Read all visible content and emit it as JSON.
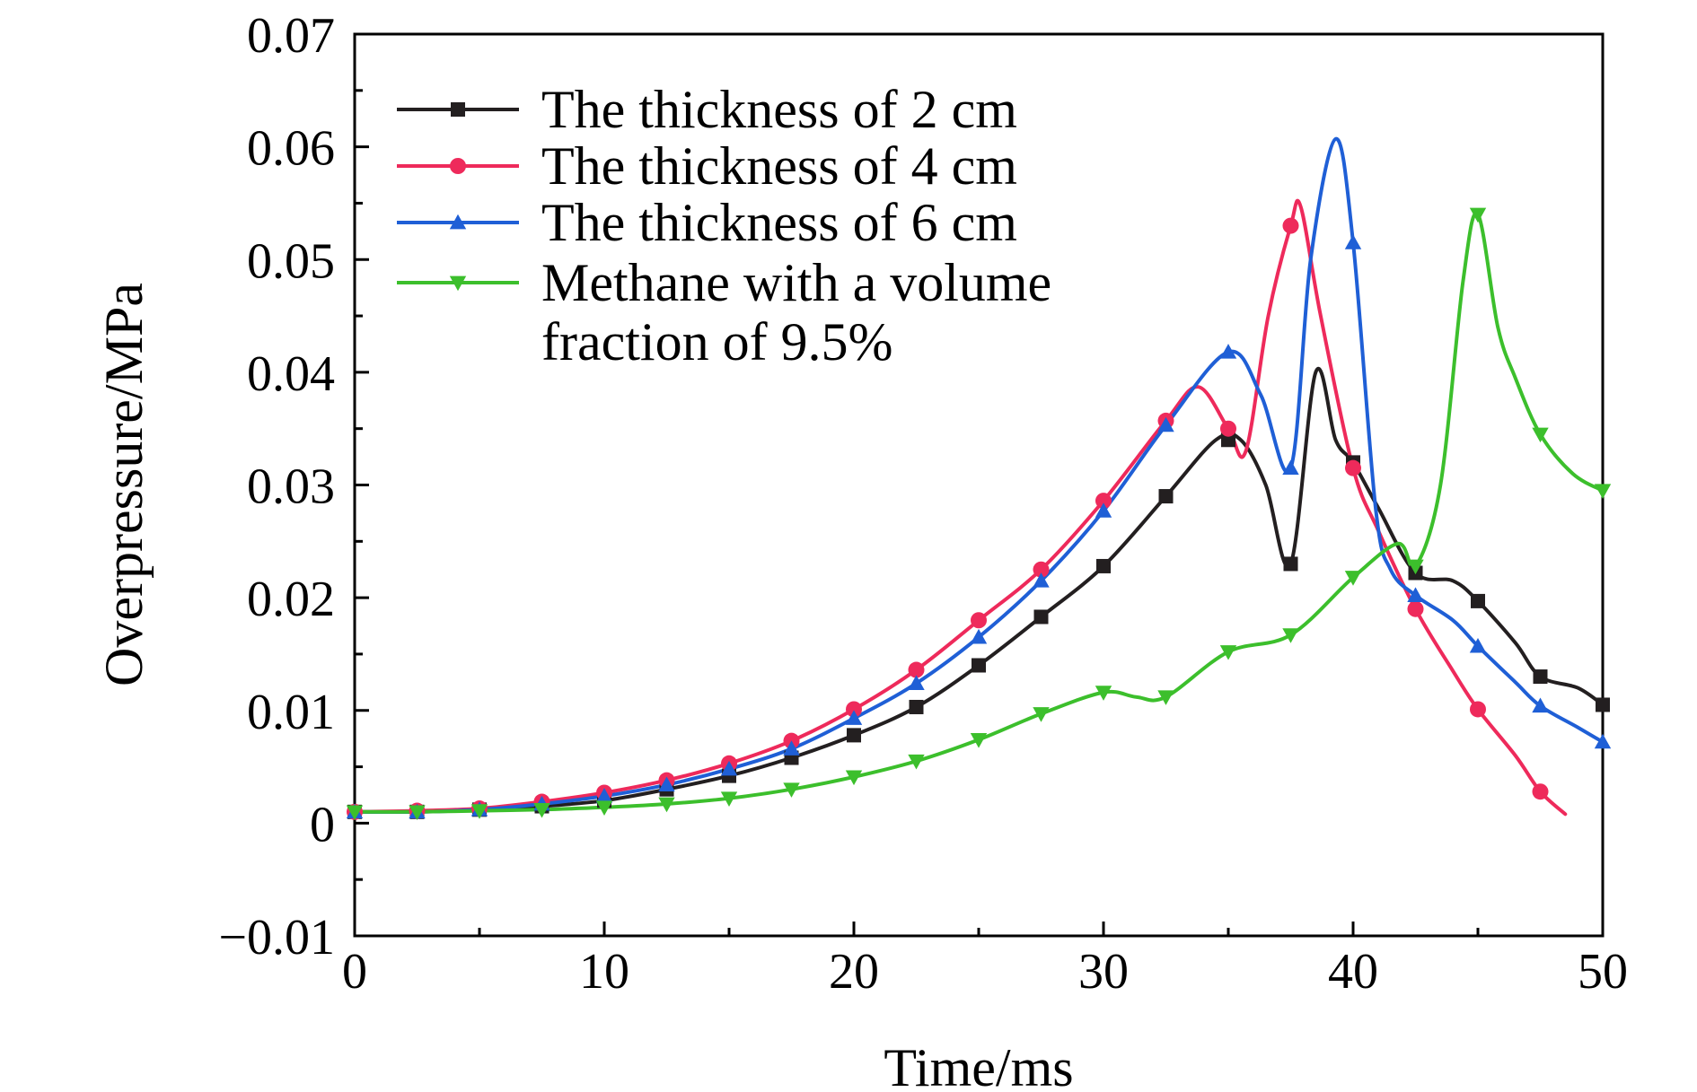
{
  "chart_data": {
    "type": "line",
    "xlabel": "Time/ms",
    "ylabel": "Overpressure/MPa",
    "xlim": [
      0,
      50
    ],
    "ylim": [
      -0.01,
      0.07
    ],
    "x_ticks": [
      "0",
      "10",
      "20",
      "30",
      "40",
      "50"
    ],
    "y_ticks": [
      "−0.01",
      "0",
      "0.01",
      "0.02",
      "0.03",
      "0.04",
      "0.05",
      "0.06",
      "0.07"
    ],
    "grid": false,
    "legend_position": "top-left",
    "series": [
      {
        "name": "The thickness of 2 cm",
        "color": "#231f20",
        "marker": "square",
        "markers": [
          [
            0,
            0.001
          ],
          [
            2.5,
            0.001
          ],
          [
            5,
            0.0012
          ],
          [
            7.5,
            0.0015
          ],
          [
            10,
            0.002
          ],
          [
            12.5,
            0.003
          ],
          [
            15,
            0.0042
          ],
          [
            17.5,
            0.0058
          ],
          [
            20,
            0.0078
          ],
          [
            22.5,
            0.0103
          ],
          [
            25,
            0.014
          ],
          [
            27.5,
            0.0183
          ],
          [
            30,
            0.0228
          ],
          [
            32.5,
            0.029
          ],
          [
            35,
            0.034
          ],
          [
            37.5,
            0.023
          ],
          [
            40,
            0.032
          ],
          [
            42.5,
            0.0222
          ],
          [
            45,
            0.0197
          ],
          [
            47.5,
            0.013
          ],
          [
            50,
            0.0105
          ]
        ],
        "curve": [
          [
            0,
            0.001
          ],
          [
            2.5,
            0.001
          ],
          [
            5,
            0.0012
          ],
          [
            7.5,
            0.0015
          ],
          [
            10,
            0.002
          ],
          [
            12.5,
            0.003
          ],
          [
            15,
            0.0042
          ],
          [
            17.5,
            0.0058
          ],
          [
            20,
            0.0078
          ],
          [
            22.5,
            0.0103
          ],
          [
            25,
            0.014
          ],
          [
            27.5,
            0.0183
          ],
          [
            30,
            0.0228
          ],
          [
            32.5,
            0.029
          ],
          [
            34.5,
            0.034
          ],
          [
            35.5,
            0.034
          ],
          [
            36.5,
            0.03
          ],
          [
            37.5,
            0.023
          ],
          [
            38.5,
            0.04
          ],
          [
            39.3,
            0.034
          ],
          [
            40,
            0.032
          ],
          [
            41,
            0.028
          ],
          [
            42.5,
            0.0222
          ],
          [
            44,
            0.0215
          ],
          [
            45,
            0.0197
          ],
          [
            46.5,
            0.016
          ],
          [
            47.5,
            0.013
          ],
          [
            49,
            0.012
          ],
          [
            50,
            0.0105
          ]
        ]
      },
      {
        "name": "The thickness of 4 cm",
        "color": "#ee2a5b",
        "marker": "circle",
        "markers": [
          [
            0,
            0.001
          ],
          [
            2.5,
            0.0011
          ],
          [
            5,
            0.0013
          ],
          [
            7.5,
            0.0019
          ],
          [
            10,
            0.0027
          ],
          [
            12.5,
            0.0038
          ],
          [
            15,
            0.0053
          ],
          [
            17.5,
            0.0073
          ],
          [
            20,
            0.0101
          ],
          [
            22.5,
            0.0136
          ],
          [
            25,
            0.018
          ],
          [
            27.5,
            0.0225
          ],
          [
            30,
            0.0286
          ],
          [
            32.5,
            0.0357
          ],
          [
            35,
            0.035
          ],
          [
            37.5,
            0.053
          ],
          [
            40,
            0.0315
          ],
          [
            42.5,
            0.019
          ],
          [
            45,
            0.0101
          ],
          [
            47.5,
            0.0028
          ]
        ],
        "curve": [
          [
            0,
            0.001
          ],
          [
            2.5,
            0.0011
          ],
          [
            5,
            0.0013
          ],
          [
            7.5,
            0.0019
          ],
          [
            10,
            0.0027
          ],
          [
            12.5,
            0.0038
          ],
          [
            15,
            0.0053
          ],
          [
            17.5,
            0.0073
          ],
          [
            20,
            0.0101
          ],
          [
            22.5,
            0.0136
          ],
          [
            25,
            0.018
          ],
          [
            27.5,
            0.0225
          ],
          [
            30,
            0.0286
          ],
          [
            32.5,
            0.0357
          ],
          [
            33.8,
            0.0387
          ],
          [
            35,
            0.035
          ],
          [
            35.7,
            0.033
          ],
          [
            36.6,
            0.045
          ],
          [
            37.5,
            0.053
          ],
          [
            37.9,
            0.0547
          ],
          [
            38.7,
            0.045
          ],
          [
            40,
            0.0315
          ],
          [
            41,
            0.026
          ],
          [
            42.5,
            0.019
          ],
          [
            44,
            0.0135
          ],
          [
            45,
            0.0101
          ],
          [
            46.5,
            0.006
          ],
          [
            47.5,
            0.0028
          ],
          [
            48.5,
            0.0008
          ]
        ]
      },
      {
        "name": "The thickness of 6 cm",
        "color": "#1f5fd6",
        "marker": "triangle-up",
        "markers": [
          [
            0,
            0.001
          ],
          [
            2.5,
            0.001
          ],
          [
            5,
            0.0012
          ],
          [
            7.5,
            0.0017
          ],
          [
            10,
            0.0024
          ],
          [
            12.5,
            0.0034
          ],
          [
            15,
            0.0048
          ],
          [
            17.5,
            0.0066
          ],
          [
            20,
            0.0093
          ],
          [
            22.5,
            0.0124
          ],
          [
            25,
            0.0165
          ],
          [
            27.5,
            0.0215
          ],
          [
            30,
            0.0277
          ],
          [
            32.5,
            0.0353
          ],
          [
            35,
            0.0418
          ],
          [
            37.5,
            0.0315
          ],
          [
            40,
            0.0515
          ],
          [
            42.5,
            0.0202
          ],
          [
            45,
            0.0157
          ],
          [
            47.5,
            0.0104
          ],
          [
            50,
            0.0072
          ]
        ],
        "curve": [
          [
            0,
            0.001
          ],
          [
            2.5,
            0.001
          ],
          [
            5,
            0.0012
          ],
          [
            7.5,
            0.0017
          ],
          [
            10,
            0.0024
          ],
          [
            12.5,
            0.0034
          ],
          [
            15,
            0.0048
          ],
          [
            17.5,
            0.0066
          ],
          [
            20,
            0.0093
          ],
          [
            22.5,
            0.0124
          ],
          [
            25,
            0.0165
          ],
          [
            27.5,
            0.0215
          ],
          [
            30,
            0.0277
          ],
          [
            32.5,
            0.0353
          ],
          [
            35,
            0.0418
          ],
          [
            36.3,
            0.038
          ],
          [
            37.5,
            0.0315
          ],
          [
            38.3,
            0.05
          ],
          [
            39.3,
            0.0607
          ],
          [
            40,
            0.0515
          ],
          [
            40.9,
            0.028
          ],
          [
            41.5,
            0.0225
          ],
          [
            42.5,
            0.0202
          ],
          [
            44,
            0.018
          ],
          [
            45,
            0.0157
          ],
          [
            46.5,
            0.0125
          ],
          [
            47.5,
            0.0104
          ],
          [
            49,
            0.0085
          ],
          [
            50,
            0.0072
          ]
        ]
      },
      {
        "name": "Methane with a volume fraction of 9.5%",
        "legend_lines": [
          "Methane with a volume",
          "fraction of 9.5%"
        ],
        "color": "#3cbf2c",
        "marker": "triangle-down",
        "markers": [
          [
            0,
            0.001
          ],
          [
            2.5,
            0.001
          ],
          [
            5,
            0.0011
          ],
          [
            7.5,
            0.0012
          ],
          [
            10,
            0.0014
          ],
          [
            12.5,
            0.0017
          ],
          [
            15,
            0.0022
          ],
          [
            17.5,
            0.003
          ],
          [
            20,
            0.0041
          ],
          [
            22.5,
            0.0055
          ],
          [
            25,
            0.0074
          ],
          [
            27.5,
            0.0097
          ],
          [
            30,
            0.0116
          ],
          [
            32.5,
            0.0112
          ],
          [
            35,
            0.0152
          ],
          [
            37.5,
            0.0167
          ],
          [
            40,
            0.0218
          ],
          [
            42.5,
            0.0228
          ],
          [
            45,
            0.054
          ],
          [
            47.5,
            0.0345
          ],
          [
            50,
            0.0295
          ]
        ],
        "curve": [
          [
            0,
            0.001
          ],
          [
            2.5,
            0.001
          ],
          [
            5,
            0.0011
          ],
          [
            7.5,
            0.0012
          ],
          [
            10,
            0.0014
          ],
          [
            12.5,
            0.0017
          ],
          [
            15,
            0.0022
          ],
          [
            17.5,
            0.003
          ],
          [
            20,
            0.0041
          ],
          [
            22.5,
            0.0055
          ],
          [
            25,
            0.0074
          ],
          [
            27.5,
            0.0097
          ],
          [
            30,
            0.0116
          ],
          [
            31.3,
            0.0112
          ],
          [
            32.5,
            0.0112
          ],
          [
            35,
            0.0152
          ],
          [
            37.5,
            0.0167
          ],
          [
            40,
            0.0218
          ],
          [
            41.8,
            0.0248
          ],
          [
            42.5,
            0.0228
          ],
          [
            43.5,
            0.03
          ],
          [
            44.4,
            0.048
          ],
          [
            45,
            0.054
          ],
          [
            45.8,
            0.044
          ],
          [
            46.5,
            0.0395
          ],
          [
            47.5,
            0.0345
          ],
          [
            48.8,
            0.031
          ],
          [
            50,
            0.0295
          ]
        ]
      }
    ]
  }
}
